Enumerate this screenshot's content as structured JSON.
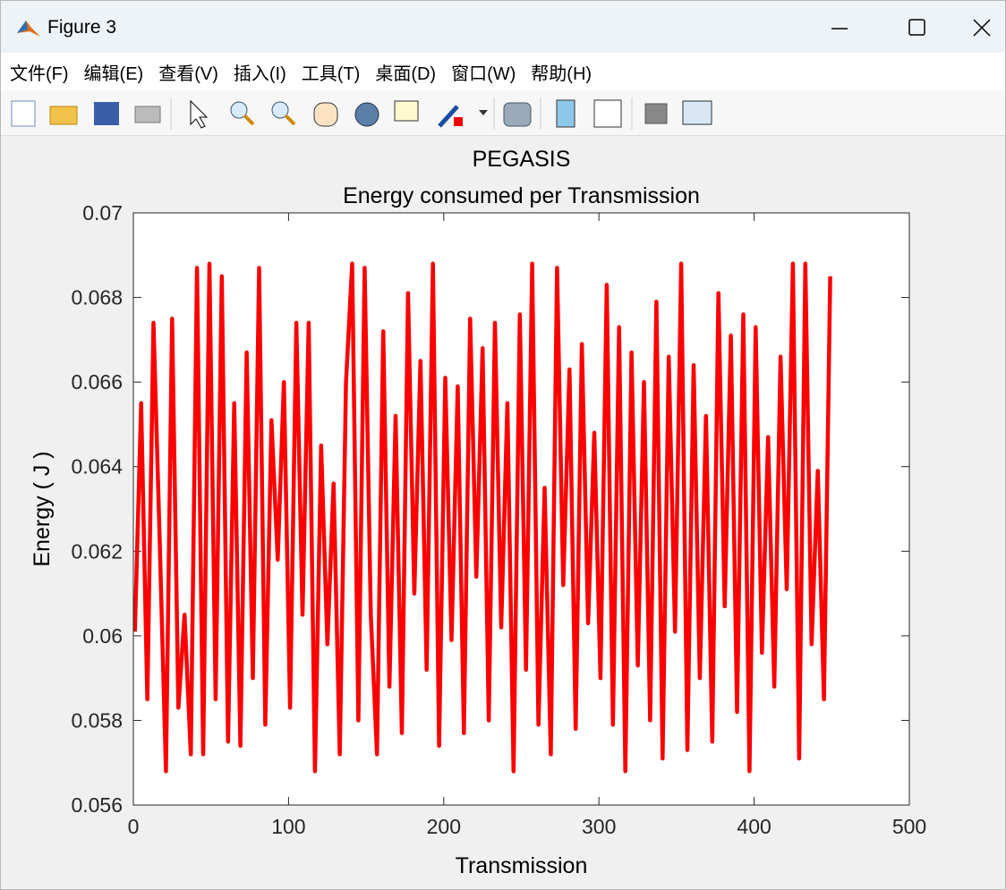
{
  "window": {
    "title": "Figure 3"
  },
  "menu": {
    "items": [
      "文件(F)",
      "编辑(E)",
      "查看(V)",
      "插入(I)",
      "工具(T)",
      "桌面(D)",
      "窗口(W)",
      "帮助(H)"
    ]
  },
  "chart_data": {
    "type": "line",
    "title": "PEGASIS",
    "subtitle": "Energy consumed per Transmission",
    "xlabel": "Transmission",
    "ylabel": "Energy ( J )",
    "color": "#ff0000",
    "x": [
      1,
      5,
      9,
      13,
      17,
      21,
      25,
      29,
      33,
      37,
      41,
      45,
      49,
      53,
      57,
      61,
      65,
      69,
      73,
      77,
      81,
      85,
      89,
      93,
      97,
      101,
      105,
      109,
      113,
      117,
      121,
      125,
      129,
      133,
      137,
      141,
      145,
      149,
      153,
      157,
      161,
      165,
      169,
      173,
      177,
      181,
      185,
      189,
      193,
      197,
      201,
      205,
      209,
      213,
      217,
      221,
      225,
      229,
      233,
      237,
      241,
      245,
      249,
      253,
      257,
      261,
      265,
      269,
      273,
      277,
      281,
      285,
      289,
      293,
      297,
      301,
      305,
      309,
      313,
      317,
      321,
      325,
      329,
      333,
      337,
      341,
      345,
      349,
      353,
      357,
      361,
      365,
      369,
      373,
      377,
      381,
      385,
      389,
      393,
      397,
      401,
      405,
      409,
      413,
      417,
      421,
      425,
      429,
      433,
      437,
      441,
      445,
      449
    ],
    "values": [
      0.0601,
      0.0655,
      0.0585,
      0.0674,
      0.0622,
      0.0568,
      0.0675,
      0.0583,
      0.0605,
      0.0572,
      0.0687,
      0.0572,
      0.0688,
      0.0585,
      0.0685,
      0.0575,
      0.0655,
      0.0574,
      0.0667,
      0.059,
      0.0687,
      0.0579,
      0.0651,
      0.0618,
      0.066,
      0.0583,
      0.0674,
      0.0605,
      0.0674,
      0.0568,
      0.0645,
      0.0598,
      0.0636,
      0.0572,
      0.066,
      0.0688,
      0.058,
      0.0687,
      0.0605,
      0.0572,
      0.0672,
      0.0588,
      0.0652,
      0.0577,
      0.0681,
      0.061,
      0.0665,
      0.0592,
      0.0688,
      0.0574,
      0.0661,
      0.0599,
      0.0659,
      0.0577,
      0.0675,
      0.0614,
      0.0668,
      0.058,
      0.0674,
      0.0602,
      0.0655,
      0.0568,
      0.0676,
      0.0592,
      0.0688,
      0.0579,
      0.0635,
      0.0572,
      0.0687,
      0.0612,
      0.0663,
      0.0578,
      0.0669,
      0.0603,
      0.0648,
      0.059,
      0.0683,
      0.0579,
      0.0673,
      0.0568,
      0.0667,
      0.0593,
      0.066,
      0.058,
      0.0679,
      0.0571,
      0.0666,
      0.0601,
      0.0688,
      0.0573,
      0.0664,
      0.059,
      0.0652,
      0.0575,
      0.0681,
      0.0607,
      0.0671,
      0.0582,
      0.0676,
      0.0568,
      0.0673,
      0.0596,
      0.0647,
      0.0588,
      0.0666,
      0.0611,
      0.0688,
      0.0571,
      0.0688,
      0.0598,
      0.0639,
      0.0585,
      0.0685
    ],
    "xlim": [
      0,
      500
    ],
    "xticks": [
      0,
      100,
      200,
      300,
      400,
      500
    ],
    "ylim": [
      0.056,
      0.07
    ],
    "yticks": [
      0.056,
      0.058,
      0.06,
      0.062,
      0.064,
      0.066,
      0.068,
      0.07
    ],
    "grid": false
  }
}
